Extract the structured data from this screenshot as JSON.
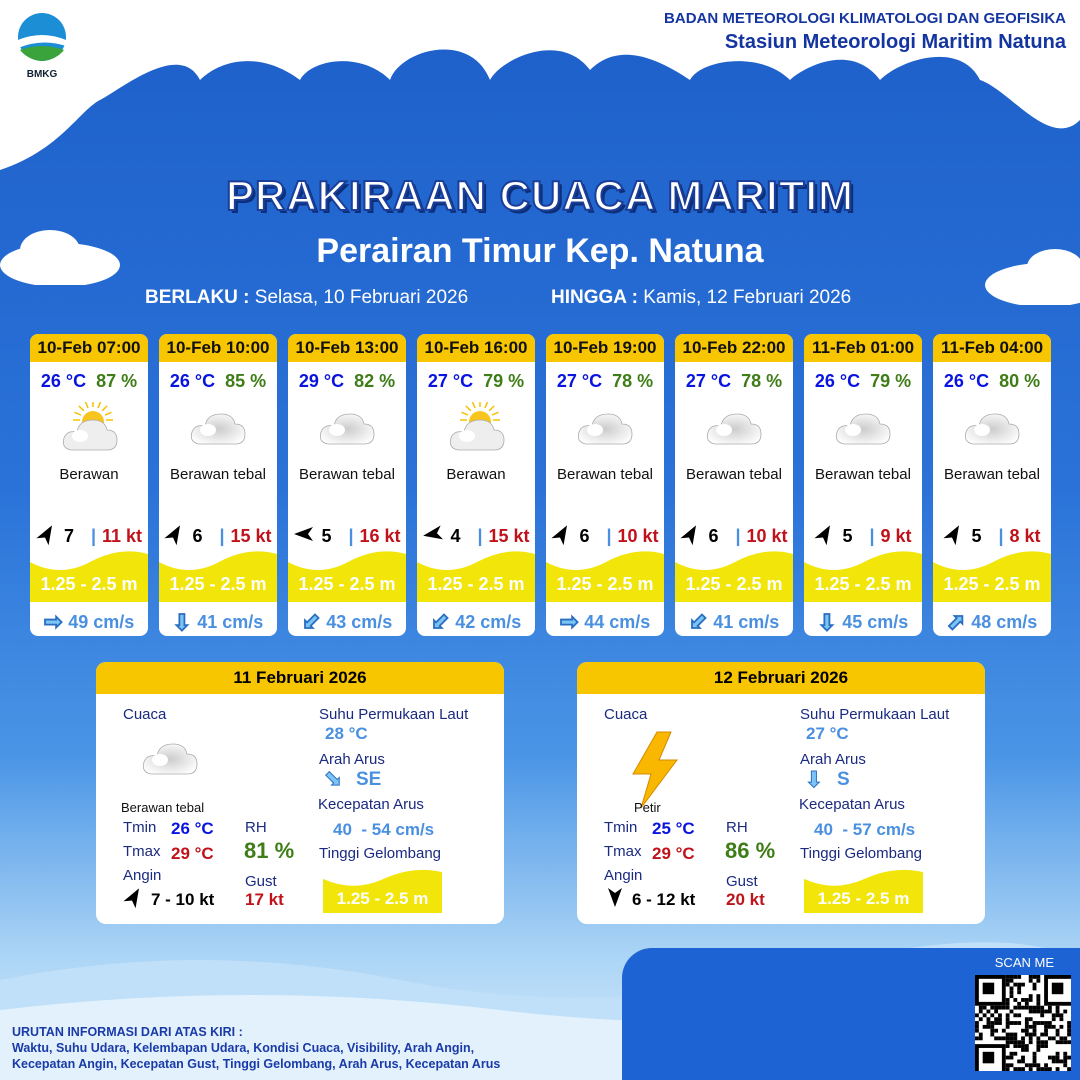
{
  "header": {
    "agency": "BADAN METEOROLOGI KLIMATOLOGI DAN GEOFISIKA",
    "station": "Stasiun Meteorologi Maritim Natuna",
    "logo_text": "BMKG"
  },
  "title": "PRAKIRAAN CUACA MARITIM",
  "subtitle": "Perairan Timur Kep. Natuna",
  "validity": {
    "from_label": "BERLAKU :",
    "from": "Selasa, 10 Februari 2026",
    "to_label": "HINGGA :",
    "to": "Kamis, 12 Februari 2026"
  },
  "cards": [
    {
      "time": "10-Feb 07:00",
      "temp": "26 °C",
      "rh": "87 %",
      "icon": "partly-cloudy-icon",
      "weather": "Berawan",
      "wind": "7",
      "gust": "11 kt",
      "wind_dir_deg": 60,
      "wave": "1.25 - 2.5 m",
      "current_dir": "right",
      "current": "49 cm/s"
    },
    {
      "time": "10-Feb 10:00",
      "temp": "26 °C",
      "rh": "85 %",
      "icon": "cloud-icon",
      "weather": "Berawan tebal",
      "wind": "6",
      "gust": "15 kt",
      "wind_dir_deg": 60,
      "wave": "1.25 - 2.5 m",
      "current_dir": "down",
      "current": "41 cm/s"
    },
    {
      "time": "10-Feb 13:00",
      "temp": "29 °C",
      "rh": "82 %",
      "icon": "cloud-icon",
      "weather": "Berawan tebal",
      "wind": "5",
      "gust": "16 kt",
      "wind_dir_deg": 180,
      "wave": "1.25 - 2.5 m",
      "current_dir": "down-left",
      "current": "43 cm/s"
    },
    {
      "time": "10-Feb 16:00",
      "temp": "27 °C",
      "rh": "79 %",
      "icon": "partly-cloudy-icon",
      "weather": "Berawan",
      "wind": "4",
      "gust": "15 kt",
      "wind_dir_deg": 190,
      "wave": "1.25 - 2.5 m",
      "current_dir": "down-left",
      "current": "42 cm/s"
    },
    {
      "time": "10-Feb 19:00",
      "temp": "27 °C",
      "rh": "78 %",
      "icon": "cloud-icon",
      "weather": "Berawan tebal",
      "wind": "6",
      "gust": "10 kt",
      "wind_dir_deg": 60,
      "wave": "1.25 - 2.5 m",
      "current_dir": "right",
      "current": "44 cm/s"
    },
    {
      "time": "10-Feb 22:00",
      "temp": "27 °C",
      "rh": "78 %",
      "icon": "cloud-icon",
      "weather": "Berawan tebal",
      "wind": "6",
      "gust": "10 kt",
      "wind_dir_deg": 60,
      "wave": "1.25 - 2.5 m",
      "current_dir": "down-left",
      "current": "41 cm/s"
    },
    {
      "time": "11-Feb 01:00",
      "temp": "26 °C",
      "rh": "79 %",
      "icon": "cloud-icon",
      "weather": "Berawan tebal",
      "wind": "5",
      "gust": "9 kt",
      "wind_dir_deg": 60,
      "wave": "1.25 - 2.5 m",
      "current_dir": "down",
      "current": "45 cm/s"
    },
    {
      "time": "11-Feb 04:00",
      "temp": "26 °C",
      "rh": "80 %",
      "icon": "cloud-icon",
      "weather": "Berawan tebal",
      "wind": "5",
      "gust": "8 kt",
      "wind_dir_deg": 60,
      "wave": "1.25 - 2.5 m",
      "current_dir": "up-right",
      "current": "48 cm/s"
    }
  ],
  "labels": {
    "cuaca": "Cuaca",
    "tmin": "Tmin",
    "tmax": "Tmax",
    "angin": "Angin",
    "rh": "RH",
    "gust": "Gust",
    "sst": "Suhu Permukaan Laut",
    "arah": "Arah Arus",
    "kec": "Kecepatan Arus",
    "tinggi": "Tinggi Gelombang"
  },
  "daily": [
    {
      "date": "11 Februari 2026",
      "icon": "cloud-icon",
      "weather": "Berawan tebal",
      "tmin": "26 °C",
      "tmax": "29 °C",
      "rh": "81 %",
      "wind": "7  - 10 kt",
      "gust": "17 kt",
      "sst": "28 °C",
      "current_dir": "SE",
      "current_from": "40",
      "current_to": "- 54 cm/s",
      "wave": "1.25 - 2.5 m"
    },
    {
      "date": "12 Februari 2026",
      "icon": "lightning-icon",
      "weather": "Petir",
      "tmin": "25 °C",
      "tmax": "29 °C",
      "rh": "86 %",
      "wind": "6  - 12 kt",
      "gust": "20 kt",
      "sst": "27 °C",
      "current_dir": "S",
      "current_from": "40",
      "current_to": "- 57 cm/s",
      "wave": "1.25 - 2.5 m"
    }
  ],
  "footer": {
    "title": "URUTAN INFORMASI DARI ATAS KIRI :",
    "line1": "Waktu, Suhu Udara, Kelembapan Udara, Kondisi Cuaca, Visibility, Arah Angin,",
    "line2": "Kecepatan Angin, Kecepatan Gust, Tinggi Gelombang, Arah Arus, Kecepatan Arus"
  },
  "scan": "SCAN ME"
}
